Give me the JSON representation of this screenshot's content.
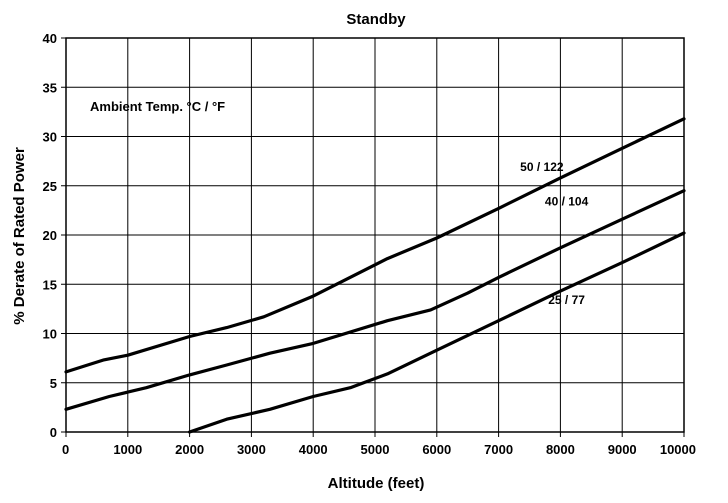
{
  "chart_data": {
    "type": "line",
    "title": "Standby",
    "xlabel": "Altitude (feet)",
    "ylabel": "% Derate of Rated Power",
    "xlim": [
      0,
      10000
    ],
    "ylim": [
      0,
      40
    ],
    "xticks": [
      0,
      1000,
      2000,
      3000,
      4000,
      5000,
      6000,
      7000,
      8000,
      9000,
      10000
    ],
    "yticks": [
      0,
      5,
      10,
      15,
      20,
      25,
      30,
      35,
      40
    ],
    "grid": true,
    "annotation": "Ambient Temp.  °C / °F",
    "series": [
      {
        "name": "50 / 122",
        "x": [
          0,
          600,
          1000,
          2000,
          2600,
          3200,
          4000,
          5200,
          6000,
          7000,
          8000,
          9000,
          10000
        ],
        "y": [
          6.1,
          7.3,
          7.8,
          9.7,
          10.6,
          11.7,
          13.8,
          17.6,
          19.7,
          22.7,
          25.8,
          28.8,
          31.8
        ]
      },
      {
        "name": "40 / 104",
        "x": [
          0,
          700,
          1300,
          2000,
          2600,
          3300,
          4000,
          5200,
          5900,
          6500,
          7000,
          8000,
          9000,
          10000
        ],
        "y": [
          2.3,
          3.6,
          4.5,
          5.8,
          6.8,
          8.0,
          9.0,
          11.3,
          12.4,
          14.1,
          15.7,
          18.7,
          21.6,
          24.5
        ]
      },
      {
        "name": "25 / 77",
        "x": [
          2000,
          2600,
          3300,
          4000,
          4600,
          5200,
          6000,
          7000,
          8000,
          9000,
          10000
        ],
        "y": [
          0.0,
          1.3,
          2.3,
          3.6,
          4.5,
          5.9,
          8.3,
          11.3,
          14.3,
          17.2,
          20.2
        ]
      }
    ],
    "series_label_positions": [
      {
        "x": 7700,
        "y": 26.5
      },
      {
        "x": 8100,
        "y": 23.0
      },
      {
        "x": 8100,
        "y": 13.0
      }
    ]
  }
}
